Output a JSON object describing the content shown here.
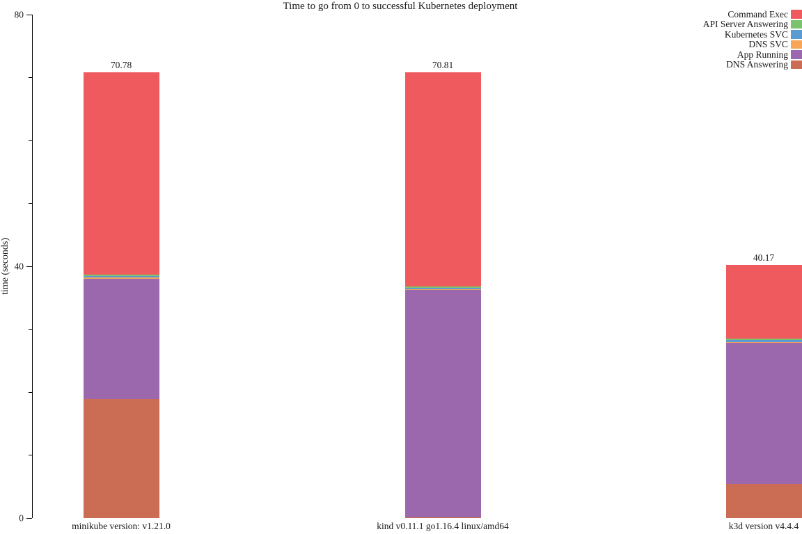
{
  "title": "Time to go from 0 to successful Kubernetes deployment",
  "y_axis_title": "time (seconds)",
  "chart_data": {
    "type": "bar",
    "stacked": true,
    "title": "Time to go from 0 to successful Kubernetes deployment",
    "xlabel": "",
    "ylabel": "time (seconds)",
    "ylim": [
      0,
      80
    ],
    "yticks_major": [
      0,
      40,
      80
    ],
    "yticks_minor": [
      10,
      20,
      30,
      50,
      60,
      70
    ],
    "grid": false,
    "legend_position": "top-right-outside",
    "categories": [
      "minikube version: v1.21.0",
      "kind v0.11.1 go1.16.4 linux/amd64",
      "k3d version v4.4.4"
    ],
    "series": [
      {
        "name": "DNS Answering",
        "color": "#cb6c54",
        "values": [
          18.9,
          0.15,
          5.4
        ]
      },
      {
        "name": "App Running",
        "color": "#9c68ad",
        "values": [
          19.1,
          36.05,
          22.4
        ]
      },
      {
        "name": "DNS SVC",
        "color": "#f7a556",
        "values": [
          0.2,
          0.2,
          0.2
        ]
      },
      {
        "name": "Kubernetes SVC",
        "color": "#5b9bd3",
        "values": [
          0.25,
          0.2,
          0.25
        ]
      },
      {
        "name": "API Server Answering",
        "color": "#7cc36f",
        "values": [
          0.25,
          0.2,
          0.25
        ]
      },
      {
        "name": "Command Exec",
        "color": "#ef5a5f",
        "values": [
          32.08,
          34.01,
          11.67
        ]
      }
    ],
    "legend_order": [
      "Command Exec",
      "API Server Answering",
      "Kubernetes SVC",
      "DNS SVC",
      "App Running",
      "DNS Answering"
    ],
    "totals": [
      70.78,
      70.81,
      40.17
    ],
    "total_labels": [
      "70.78",
      "70.81",
      "40.17"
    ]
  }
}
